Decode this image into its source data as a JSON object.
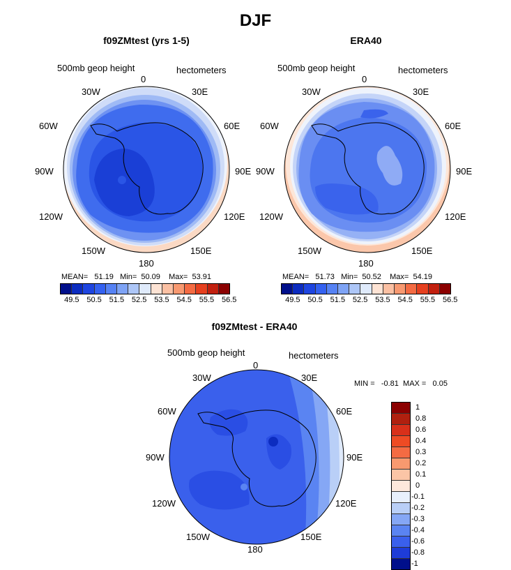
{
  "chart_data": [
    {
      "type": "polar-contour-map",
      "title": "f09ZMtest (yrs 1-5)",
      "left_label": "500mb geop height",
      "right_label": "hectometers",
      "lon_labels": [
        "0",
        "30E",
        "60E",
        "90E",
        "120E",
        "150E",
        "180",
        "150W",
        "120W",
        "90W",
        "60W",
        "30W"
      ],
      "stats": {
        "mean_label": "MEAN=",
        "mean": "51.19",
        "min_label": "Min=",
        "min": "50.09",
        "max_label": "Max=",
        "max": "53.91"
      },
      "colorbar_ticks": [
        "49.5",
        "50.5",
        "51.5",
        "52.5",
        "53.5",
        "54.5",
        "55.5",
        "56.5"
      ]
    },
    {
      "type": "polar-contour-map",
      "title": "ERA40",
      "left_label": "500mb geop height",
      "right_label": "hectometers",
      "lon_labels": [
        "0",
        "30E",
        "60E",
        "90E",
        "120E",
        "150E",
        "180",
        "150W",
        "120W",
        "90W",
        "60W",
        "30W"
      ],
      "stats": {
        "mean_label": "MEAN=",
        "mean": "51.73",
        "min_label": "Min=",
        "min": "50.52",
        "max_label": "Max=",
        "max": "54.19"
      },
      "colorbar_ticks": [
        "49.5",
        "50.5",
        "51.5",
        "52.5",
        "53.5",
        "54.5",
        "55.5",
        "56.5"
      ]
    },
    {
      "type": "polar-contour-map",
      "title": "f09ZMtest - ERA40",
      "left_label": "500mb geop height",
      "right_label": "hectometers",
      "lon_labels": [
        "0",
        "30E",
        "60E",
        "90E",
        "120E",
        "150E",
        "180",
        "150W",
        "120W",
        "90W",
        "60W",
        "30W"
      ],
      "stats": {
        "min_label": "MIN =",
        "min": "-0.81",
        "max_label": "MAX =",
        "max": "0.05"
      },
      "colorbar_ticks": [
        "1",
        "0.8",
        "0.6",
        "0.4",
        "0.3",
        "0.2",
        "0.1",
        "0",
        "-0.1",
        "-0.2",
        "-0.3",
        "-0.4",
        "-0.6",
        "-0.8",
        "-1"
      ]
    }
  ],
  "figure": {
    "title": "DJF"
  },
  "colors": {
    "seq": [
      "#000f8b",
      "#0c2cc0",
      "#1e45e0",
      "#3461f0",
      "#5682f4",
      "#7ea3f5",
      "#adc6f7",
      "#dfeafb",
      "#fde3d4",
      "#fbc0a3",
      "#f89971",
      "#f46b43",
      "#e6401f",
      "#c2200f",
      "#8b0000"
    ],
    "diff": [
      "#8b0000",
      "#b0200f",
      "#d8301a",
      "#ee4b24",
      "#f46b43",
      "#f8996f",
      "#fbc5a6",
      "#fde8dc",
      "#e8f0fc",
      "#b9cff7",
      "#85a7f5",
      "#5a84f2",
      "#3a60ec",
      "#1e3cd8",
      "#000f8b"
    ]
  }
}
